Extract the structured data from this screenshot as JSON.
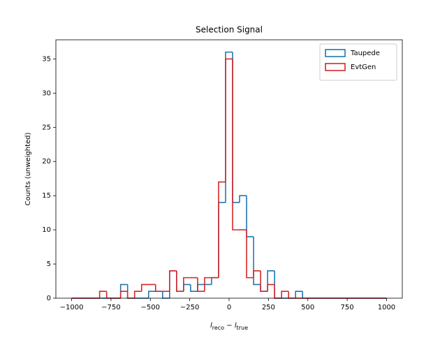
{
  "chart_data": {
    "type": "step_histogram",
    "title": "Selection Signal",
    "xlabel_parts": [
      "l",
      "reco",
      " − ",
      "l",
      "true"
    ],
    "ylabel": "Counts (unweighted)",
    "bins": [
      -1000,
      -955.56,
      -911.11,
      -866.67,
      -822.22,
      -777.78,
      -733.33,
      -688.89,
      -644.44,
      -600,
      -555.56,
      -511.11,
      -466.67,
      -422.22,
      -377.78,
      -333.33,
      -288.89,
      -244.44,
      -200,
      -155.56,
      -111.11,
      -66.67,
      -22.22,
      22.22,
      66.67,
      111.11,
      155.56,
      200,
      244.44,
      288.89,
      333.33,
      377.78,
      422.22,
      466.67,
      511.11,
      555.56,
      600,
      644.44,
      688.89,
      733.33,
      777.78,
      822.22,
      866.67,
      911.11,
      955.56,
      1000
    ],
    "series": [
      {
        "name": "Taupede",
        "color": "#1f77b4",
        "values": [
          0,
          0,
          0,
          0,
          0,
          0,
          0,
          2,
          0,
          0,
          0,
          1,
          1,
          0,
          4,
          1,
          2,
          1,
          2,
          2,
          3,
          14,
          36,
          14,
          15,
          9,
          2,
          1,
          4,
          0,
          0,
          0,
          1,
          0,
          0,
          0,
          0,
          0,
          0,
          0,
          0,
          0,
          0,
          0,
          0
        ]
      },
      {
        "name": "EvtGen",
        "color": "#d62728",
        "values": [
          0,
          0,
          0,
          0,
          1,
          0,
          0,
          1,
          0,
          1,
          2,
          2,
          1,
          1,
          4,
          1,
          3,
          3,
          1,
          3,
          3,
          17,
          35,
          10,
          10,
          3,
          4,
          1,
          2,
          0,
          1,
          0,
          0,
          0,
          0,
          0,
          0,
          0,
          0,
          0,
          0,
          0,
          0,
          0,
          0
        ]
      }
    ],
    "xlim": [
      -1100,
      1100
    ],
    "ylim": [
      0,
      37.8
    ],
    "xticks": [
      {
        "value": -1000,
        "label": "−1000"
      },
      {
        "value": -750,
        "label": "−750"
      },
      {
        "value": -500,
        "label": "−500"
      },
      {
        "value": -250,
        "label": "−250"
      },
      0,
      250,
      500,
      750,
      1000
    ],
    "yticks": [
      0,
      5,
      10,
      15,
      20,
      25,
      30,
      35
    ],
    "legend": "upper right"
  }
}
